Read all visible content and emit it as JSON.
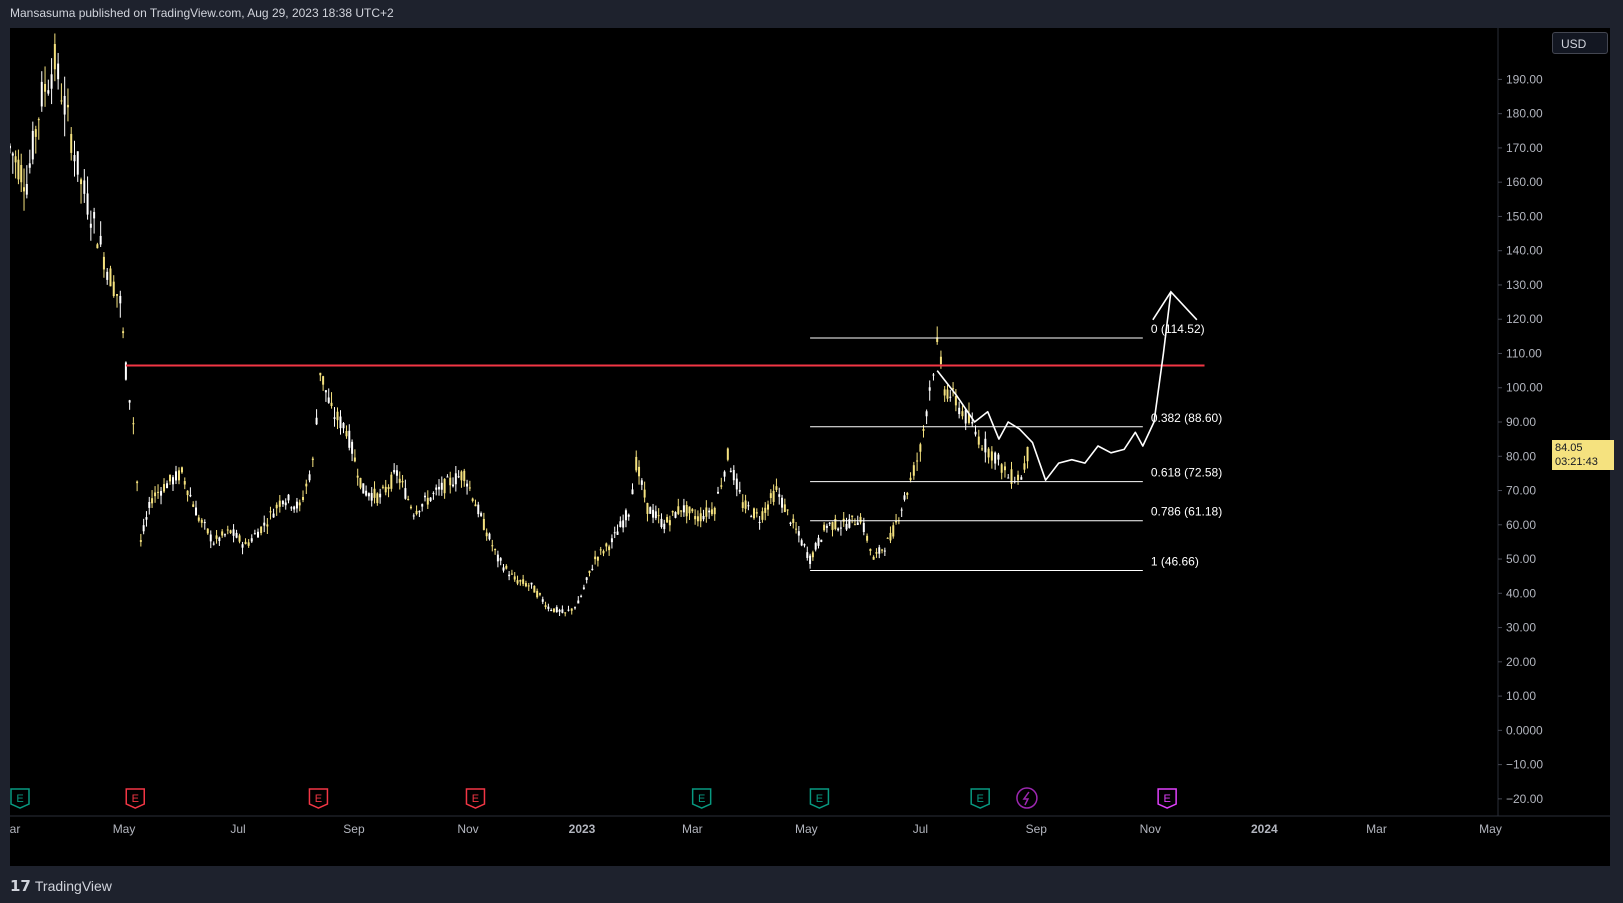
{
  "header": {
    "text": "Mansasuma published on TradingView.com, Aug 29, 2023 18:38 UTC+2"
  },
  "currency": {
    "label": "USD"
  },
  "price_badge": {
    "price": "84.05",
    "countdown": "03:21:43"
  },
  "footer": {
    "brand": "TradingView"
  },
  "colors": {
    "background": "#000000",
    "candle": "#f5e27f",
    "resistance": "#f23645",
    "fib": "#ffffff",
    "axis": "#b2b5be"
  },
  "chart_data": {
    "type": "candlestick",
    "title": "",
    "ylim": [
      -25,
      205
    ],
    "y_ticks": [
      190,
      180,
      170,
      160,
      150,
      140,
      130,
      120,
      110,
      100,
      90,
      80,
      70,
      60,
      50,
      40,
      30,
      20,
      10,
      0,
      -10,
      -20
    ],
    "y_tick_labels": [
      "190.00",
      "180.00",
      "170.00",
      "160.00",
      "150.00",
      "140.00",
      "130.00",
      "120.00",
      "110.00",
      "100.00",
      "90.00",
      "80.00",
      "70.00",
      "60.00",
      "50.00",
      "40.00",
      "30.00",
      "20.00",
      "10.00",
      "0.0000",
      "−10.00",
      "−20.00"
    ],
    "x_tick_labels": [
      "Mar",
      "May",
      "Jul",
      "Sep",
      "Nov",
      "2023",
      "Mar",
      "May",
      "Jul",
      "Sep",
      "Nov",
      "2024",
      "Mar",
      "May"
    ],
    "x_ticks": [
      "2022-03-01",
      "2022-05-01",
      "2022-07-01",
      "2022-09-01",
      "2022-11-01",
      "2023-01-01",
      "2023-03-01",
      "2023-05-01",
      "2023-07-01",
      "2023-09-01",
      "2023-11-01",
      "2024-01-01",
      "2024-03-01",
      "2024-05-01"
    ],
    "x_range": [
      "2022-03-01",
      "2024-05-05"
    ],
    "price_series": [
      {
        "date": "2022-03-01",
        "close": 170
      },
      {
        "date": "2022-03-10",
        "close": 160
      },
      {
        "date": "2022-03-18",
        "close": 185
      },
      {
        "date": "2022-03-25",
        "close": 195
      },
      {
        "date": "2022-04-01",
        "close": 178
      },
      {
        "date": "2022-04-08",
        "close": 160
      },
      {
        "date": "2022-04-15",
        "close": 148
      },
      {
        "date": "2022-04-22",
        "close": 135
      },
      {
        "date": "2022-04-29",
        "close": 125
      },
      {
        "date": "2022-05-02",
        "close": 105
      },
      {
        "date": "2022-05-06",
        "close": 90
      },
      {
        "date": "2022-05-10",
        "close": 55
      },
      {
        "date": "2022-05-16",
        "close": 68
      },
      {
        "date": "2022-05-24",
        "close": 72
      },
      {
        "date": "2022-06-01",
        "close": 75
      },
      {
        "date": "2022-06-10",
        "close": 62
      },
      {
        "date": "2022-06-18",
        "close": 55
      },
      {
        "date": "2022-06-27",
        "close": 58
      },
      {
        "date": "2022-07-05",
        "close": 54
      },
      {
        "date": "2022-07-15",
        "close": 60
      },
      {
        "date": "2022-07-25",
        "close": 68
      },
      {
        "date": "2022-08-03",
        "close": 65
      },
      {
        "date": "2022-08-10",
        "close": 78
      },
      {
        "date": "2022-08-14",
        "close": 105
      },
      {
        "date": "2022-08-20",
        "close": 93
      },
      {
        "date": "2022-08-28",
        "close": 88
      },
      {
        "date": "2022-09-06",
        "close": 70
      },
      {
        "date": "2022-09-15",
        "close": 68
      },
      {
        "date": "2022-09-24",
        "close": 75
      },
      {
        "date": "2022-10-03",
        "close": 64
      },
      {
        "date": "2022-10-12",
        "close": 68
      },
      {
        "date": "2022-10-21",
        "close": 72
      },
      {
        "date": "2022-10-30",
        "close": 75
      },
      {
        "date": "2022-11-08",
        "close": 62
      },
      {
        "date": "2022-11-17",
        "close": 50
      },
      {
        "date": "2022-11-26",
        "close": 44
      },
      {
        "date": "2022-12-05",
        "close": 42
      },
      {
        "date": "2022-12-14",
        "close": 36
      },
      {
        "date": "2022-12-23",
        "close": 34
      },
      {
        "date": "2022-12-30",
        "close": 37
      },
      {
        "date": "2023-01-08",
        "close": 50
      },
      {
        "date": "2023-01-17",
        "close": 55
      },
      {
        "date": "2023-01-26",
        "close": 64
      },
      {
        "date": "2023-01-30",
        "close": 78
      },
      {
        "date": "2023-02-05",
        "close": 65
      },
      {
        "date": "2023-02-14",
        "close": 60
      },
      {
        "date": "2023-02-23",
        "close": 65
      },
      {
        "date": "2023-03-04",
        "close": 62
      },
      {
        "date": "2023-03-13",
        "close": 65
      },
      {
        "date": "2023-03-20",
        "close": 80
      },
      {
        "date": "2023-03-28",
        "close": 66
      },
      {
        "date": "2023-04-06",
        "close": 62
      },
      {
        "date": "2023-04-15",
        "close": 70
      },
      {
        "date": "2023-04-24",
        "close": 60
      },
      {
        "date": "2023-05-03",
        "close": 50
      },
      {
        "date": "2023-05-12",
        "close": 60
      },
      {
        "date": "2023-05-21",
        "close": 60
      },
      {
        "date": "2023-05-30",
        "close": 62
      },
      {
        "date": "2023-06-06",
        "close": 50
      },
      {
        "date": "2023-06-15",
        "close": 56
      },
      {
        "date": "2023-06-24",
        "close": 70
      },
      {
        "date": "2023-07-01",
        "close": 82
      },
      {
        "date": "2023-07-06",
        "close": 100
      },
      {
        "date": "2023-07-10",
        "close": 112
      },
      {
        "date": "2023-07-14",
        "close": 100
      },
      {
        "date": "2023-07-20",
        "close": 96
      },
      {
        "date": "2023-07-27",
        "close": 90
      },
      {
        "date": "2023-08-03",
        "close": 84
      },
      {
        "date": "2023-08-10",
        "close": 80
      },
      {
        "date": "2023-08-17",
        "close": 74
      },
      {
        "date": "2023-08-24",
        "close": 74
      },
      {
        "date": "2023-08-29",
        "close": 84
      }
    ],
    "resistance_level": 106.5,
    "fibonacci_levels": [
      {
        "ratio": "0",
        "price": 114.52,
        "label": "0 (114.52)"
      },
      {
        "ratio": "0.382",
        "price": 88.6,
        "label": "0.382 (88.60)"
      },
      {
        "ratio": "0.618",
        "price": 72.58,
        "label": "0.618 (72.58)"
      },
      {
        "ratio": "0.786",
        "price": 61.18,
        "label": "0.786 (61.18)"
      },
      {
        "ratio": "1",
        "price": 46.66,
        "label": "1 (46.66)"
      }
    ],
    "fib_range": [
      "2023-05-03",
      "2023-10-28"
    ],
    "projection_path": [
      {
        "date": "2023-07-10",
        "close": 105
      },
      {
        "date": "2023-07-20",
        "close": 98
      },
      {
        "date": "2023-07-30",
        "close": 90
      },
      {
        "date": "2023-08-06",
        "close": 93
      },
      {
        "date": "2023-08-12",
        "close": 85
      },
      {
        "date": "2023-08-17",
        "close": 90
      },
      {
        "date": "2023-08-23",
        "close": 88
      },
      {
        "date": "2023-08-30",
        "close": 84
      },
      {
        "date": "2023-09-06",
        "close": 73
      },
      {
        "date": "2023-09-13",
        "close": 78
      },
      {
        "date": "2023-09-20",
        "close": 79
      },
      {
        "date": "2023-09-27",
        "close": 78
      },
      {
        "date": "2023-10-04",
        "close": 83
      },
      {
        "date": "2023-10-11",
        "close": 81
      },
      {
        "date": "2023-10-18",
        "close": 82
      },
      {
        "date": "2023-10-24",
        "close": 87
      },
      {
        "date": "2023-10-28",
        "close": 83
      },
      {
        "date": "2023-11-03",
        "close": 90
      },
      {
        "date": "2023-11-08",
        "close": 110
      },
      {
        "date": "2023-11-12",
        "close": 128
      }
    ],
    "event_markers": [
      {
        "date": "2022-03-01",
        "type": "E",
        "color": "#089981"
      },
      {
        "date": "2022-05-07",
        "type": "E",
        "color": "#f23645"
      },
      {
        "date": "2022-08-13",
        "type": "E",
        "color": "#f23645"
      },
      {
        "date": "2022-11-05",
        "type": "E",
        "color": "#f23645"
      },
      {
        "date": "2023-03-06",
        "type": "E",
        "color": "#089981"
      },
      {
        "date": "2023-05-08",
        "type": "E",
        "color": "#089981"
      },
      {
        "date": "2023-08-02",
        "type": "E",
        "color": "#089981"
      },
      {
        "date": "2023-08-27",
        "type": "dividend",
        "color": "#9c27b0"
      },
      {
        "date": "2023-11-10",
        "type": "E",
        "color": "#e040fb"
      }
    ]
  }
}
